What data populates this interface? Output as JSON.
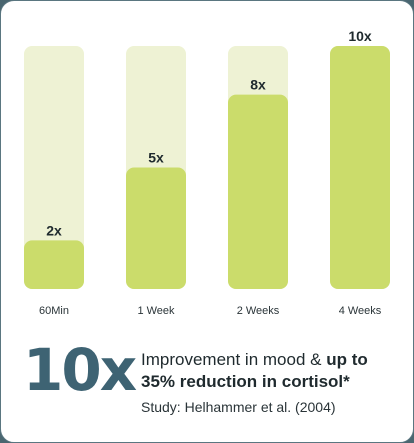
{
  "chart_data": {
    "type": "bar",
    "categories": [
      "60Min",
      "1 Week",
      "2 Weeks",
      "4 Weeks"
    ],
    "values": [
      2,
      5,
      8,
      10
    ],
    "value_labels": [
      "2x",
      "5x",
      "8x",
      "10x"
    ],
    "ylim": [
      0,
      10
    ],
    "colors": {
      "bar": "#cbdc6b",
      "track": "#eef2d4",
      "text": "#1f2a2e"
    }
  },
  "footer": {
    "big_number": "10x",
    "text_regular": "Improvement in mood & ",
    "text_bold": "up to 35% reduction in cortisol*",
    "study": "Study: Helhammer et al. (2004)"
  },
  "colors": {
    "accent": "#3e6373",
    "border": "#4a6670"
  }
}
